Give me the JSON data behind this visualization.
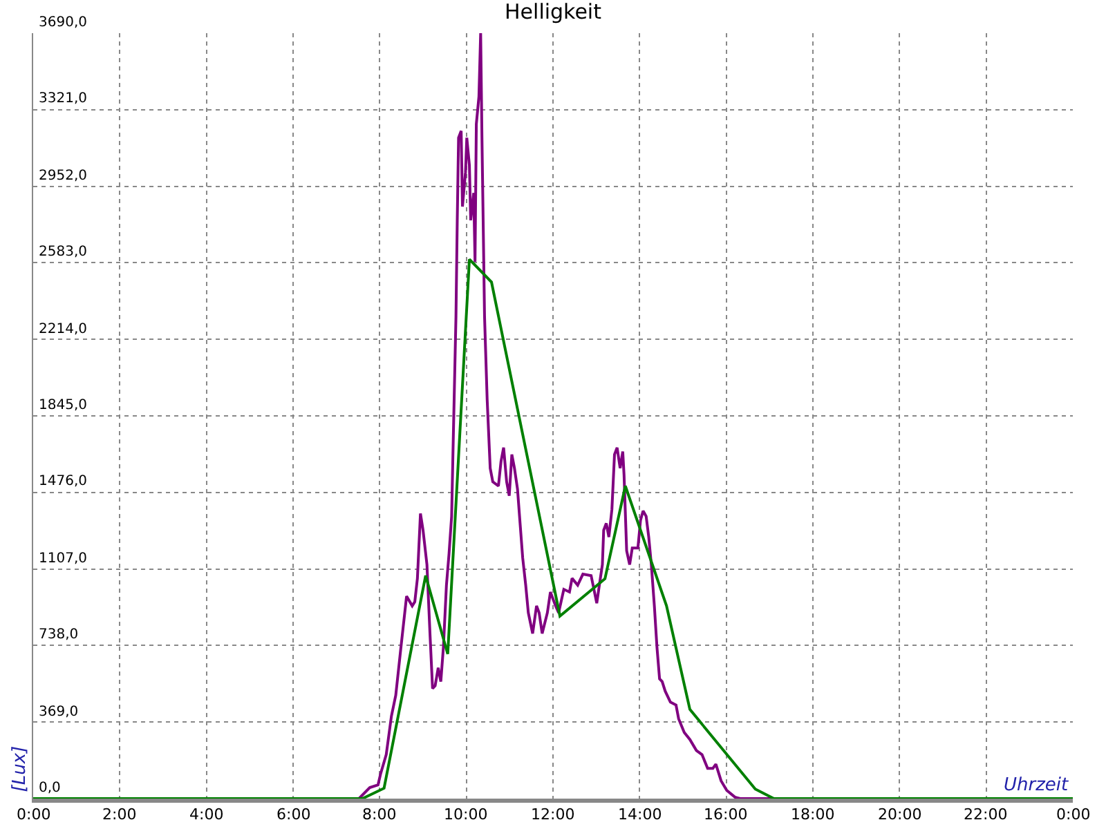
{
  "chart_data": {
    "type": "line",
    "title": "Helligkeit",
    "xlabel": "Uhrzeit",
    "ylabel": "[Lux]",
    "xlim": [
      0,
      24
    ],
    "xticks": [
      {
        "value": 0,
        "label": "0:00"
      },
      {
        "value": 2,
        "label": "2:00"
      },
      {
        "value": 4,
        "label": "4:00"
      },
      {
        "value": 6,
        "label": "6:00"
      },
      {
        "value": 8,
        "label": "8:00"
      },
      {
        "value": 10,
        "label": "10:00"
      },
      {
        "value": 12,
        "label": "12:00"
      },
      {
        "value": 14,
        "label": "14:00"
      },
      {
        "value": 16,
        "label": "16:00"
      },
      {
        "value": 18,
        "label": "18:00"
      },
      {
        "value": 20,
        "label": "20:00"
      },
      {
        "value": 22,
        "label": "22:00"
      },
      {
        "value": 24,
        "label": "0:00"
      }
    ],
    "ylim": [
      0,
      3690
    ],
    "yticks": [
      {
        "value": 0,
        "label": "0,0"
      },
      {
        "value": 369,
        "label": "369,0"
      },
      {
        "value": 738,
        "label": "738,0"
      },
      {
        "value": 1107,
        "label": "1107,0"
      },
      {
        "value": 1476,
        "label": "1476,0"
      },
      {
        "value": 1845,
        "label": "1845,0"
      },
      {
        "value": 2214,
        "label": "2214,0"
      },
      {
        "value": 2583,
        "label": "2583,0"
      },
      {
        "value": 2952,
        "label": "2952,0"
      },
      {
        "value": 3321,
        "label": "3321,0"
      },
      {
        "value": 3690,
        "label": "3690,0"
      }
    ],
    "grid": true,
    "marker": "none",
    "line_style": "solid",
    "series": [
      {
        "color": "#800080",
        "x": [
          0,
          7.52,
          7.77,
          7.96,
          8.02,
          8.15,
          8.27,
          8.37,
          8.49,
          8.62,
          8.75,
          8.81,
          8.87,
          8.94,
          9.0,
          9.09,
          9.16,
          9.22,
          9.28,
          9.35,
          9.41,
          9.47,
          9.54,
          9.6,
          9.66,
          9.69,
          9.76,
          9.79,
          9.82,
          9.88,
          9.91,
          9.98,
          10.01,
          10.07,
          10.1,
          10.17,
          10.2,
          10.23,
          10.29,
          10.33,
          10.36,
          10.42,
          10.48,
          10.55,
          10.61,
          10.74,
          10.8,
          10.86,
          10.93,
          10.99,
          11.05,
          11.11,
          11.18,
          11.24,
          11.3,
          11.37,
          11.43,
          11.53,
          11.62,
          11.68,
          11.75,
          11.87,
          11.94,
          12.06,
          12.13,
          12.25,
          12.38,
          12.44,
          12.57,
          12.69,
          12.88,
          13.01,
          13.07,
          13.14,
          13.17,
          13.23,
          13.29,
          13.36,
          13.42,
          13.48,
          13.55,
          13.61,
          13.64,
          13.7,
          13.77,
          13.83,
          13.96,
          14.02,
          14.08,
          14.15,
          14.21,
          14.27,
          14.34,
          14.4,
          14.46,
          14.52,
          14.59,
          14.71,
          14.84,
          14.9,
          15.03,
          15.16,
          15.31,
          15.44,
          15.57,
          15.69,
          15.76,
          15.88,
          16.01,
          16.2,
          16.32,
          24
        ],
        "values": [
          0,
          0,
          53,
          66,
          119,
          212,
          398,
          498,
          730,
          976,
          929,
          949,
          1062,
          1374,
          1294,
          1128,
          796,
          531,
          544,
          631,
          564,
          730,
          1029,
          1181,
          1361,
          1659,
          2323,
          2788,
          3186,
          3219,
          2854,
          3020,
          3186,
          3053,
          2788,
          2920,
          2588,
          3252,
          3385,
          3690,
          3186,
          2323,
          1925,
          1593,
          1527,
          1507,
          1626,
          1692,
          1527,
          1460,
          1659,
          1593,
          1493,
          1327,
          1161,
          1029,
          896,
          796,
          929,
          896,
          796,
          896,
          996,
          929,
          896,
          1009,
          996,
          1062,
          1029,
          1082,
          1075,
          942,
          1029,
          1128,
          1294,
          1327,
          1261,
          1394,
          1659,
          1692,
          1593,
          1673,
          1560,
          1195,
          1128,
          1208,
          1208,
          1341,
          1387,
          1361,
          1261,
          1128,
          929,
          730,
          577,
          564,
          518,
          465,
          451,
          385,
          319,
          285,
          232,
          212,
          146,
          146,
          166,
          86,
          40,
          7,
          0,
          0
        ]
      },
      {
        "color": "#008000",
        "x": [
          0,
          7.6,
          8.1,
          9.06,
          9.57,
          10.07,
          10.58,
          12.16,
          13.2,
          13.67,
          14.62,
          15.16,
          16.67,
          17.1,
          24
        ],
        "values": [
          0,
          0,
          50,
          1075,
          697,
          2600,
          2490,
          880,
          1060,
          1507,
          930,
          430,
          46,
          0,
          0
        ]
      }
    ]
  }
}
